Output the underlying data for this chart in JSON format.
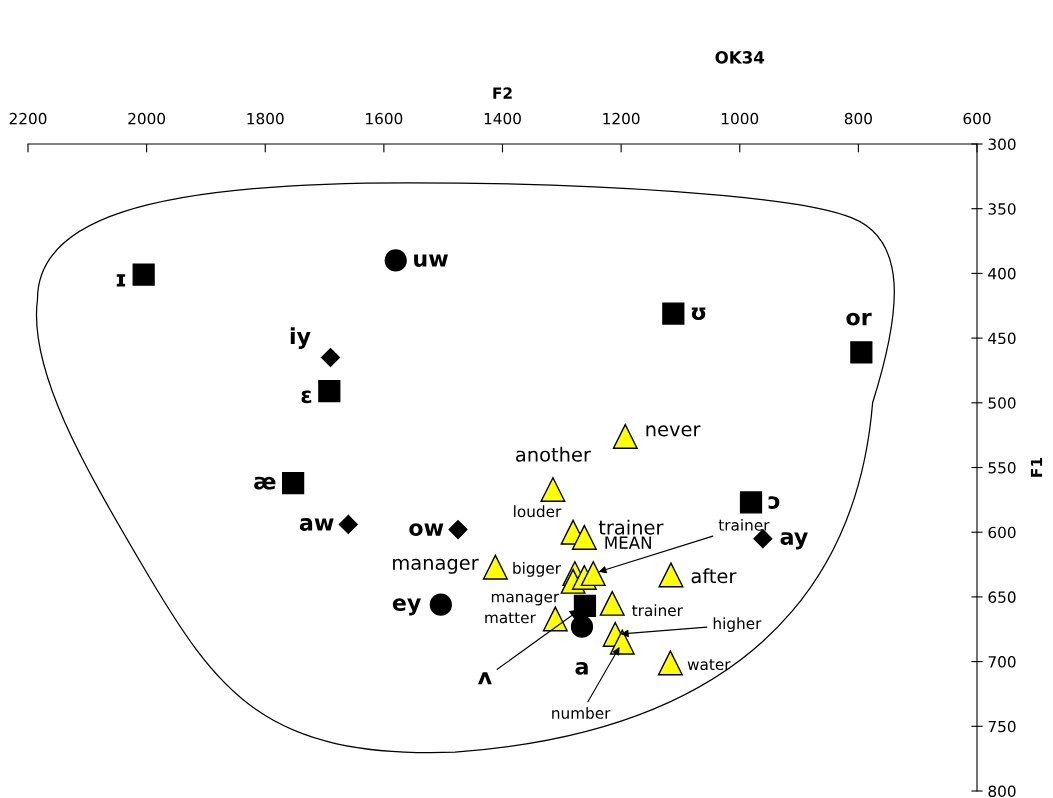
{
  "chart_data": {
    "type": "scatter",
    "title": "OK34",
    "xlabel": "F2",
    "ylabel": "F1",
    "xlim": [
      2200,
      600
    ],
    "xticks": [
      2200,
      2000,
      1800,
      1600,
      1400,
      1200,
      1000,
      800,
      600
    ],
    "ylim": [
      800,
      300
    ],
    "yticks": [
      300,
      350,
      400,
      450,
      500,
      550,
      600,
      650,
      700,
      750,
      800
    ],
    "series": [
      {
        "marker": "square",
        "color": "#000000",
        "x": [
          2005,
          1692,
          1753,
          1112,
          795,
          981,
          1261
        ],
        "values": [
          401,
          491,
          562,
          431,
          461,
          577,
          657
        ]
      },
      {
        "marker": "circle",
        "color": "#000000",
        "x": [
          1580,
          1504,
          1266
        ],
        "values": [
          390,
          656,
          673
        ]
      },
      {
        "marker": "diamond",
        "color": "#000000",
        "x": [
          1690,
          1660,
          1475,
          961
        ],
        "values": [
          465,
          594,
          598,
          605
        ]
      },
      {
        "marker": "triangle",
        "color": "#ffff00",
        "x": [
          1193,
          1315,
          1281,
          1262,
          1412,
          1278,
          1281,
          1262,
          1247,
          1116,
          1215,
          1311,
          1210,
          1198,
          1117
        ],
        "values": [
          526,
          567,
          600,
          604,
          627,
          632,
          638,
          635,
          632,
          633,
          655,
          667,
          679,
          685,
          701
        ]
      }
    ],
    "annotations": [
      {
        "text": "ɪ",
        "x": 2005,
        "y": 401
      },
      {
        "text": "ɛ",
        "x": 1692,
        "y": 491
      },
      {
        "text": "æ",
        "x": 1753,
        "y": 562
      },
      {
        "text": "ʊ",
        "x": 1112,
        "y": 431
      },
      {
        "text": "or",
        "x": 795,
        "y": 461
      },
      {
        "text": "ɔ",
        "x": 981,
        "y": 577
      },
      {
        "text": "ʌ",
        "x": 1261,
        "y": 657
      },
      {
        "text": "uw",
        "x": 1580,
        "y": 390
      },
      {
        "text": "ey",
        "x": 1504,
        "y": 656
      },
      {
        "text": "a",
        "x": 1266,
        "y": 673
      },
      {
        "text": "iy",
        "x": 1690,
        "y": 465
      },
      {
        "text": "aw",
        "x": 1660,
        "y": 594
      },
      {
        "text": "ow",
        "x": 1475,
        "y": 598
      },
      {
        "text": "ay",
        "x": 961,
        "y": 605
      },
      {
        "text": "never",
        "x": 1193,
        "y": 526
      },
      {
        "text": "another",
        "x": 1315,
        "y": 567
      },
      {
        "text": "louder",
        "x": 1281,
        "y": 600
      },
      {
        "text": "trainer",
        "x": 1262,
        "y": 604
      },
      {
        "text": "manager",
        "x": 1412,
        "y": 627
      },
      {
        "text": "bigger",
        "x": 1278,
        "y": 632
      },
      {
        "text": "manager",
        "x": 1281,
        "y": 638
      },
      {
        "text": "MEAN",
        "x": 1262,
        "y": 635
      },
      {
        "text": "trainer",
        "x": 1247,
        "y": 632
      },
      {
        "text": "after",
        "x": 1116,
        "y": 633
      },
      {
        "text": "trainer",
        "x": 1215,
        "y": 655
      },
      {
        "text": "matter",
        "x": 1311,
        "y": 667
      },
      {
        "text": "higher",
        "x": 1210,
        "y": 679
      },
      {
        "text": "number",
        "x": 1198,
        "y": 685
      },
      {
        "text": "water",
        "x": 1117,
        "y": 701
      }
    ]
  }
}
